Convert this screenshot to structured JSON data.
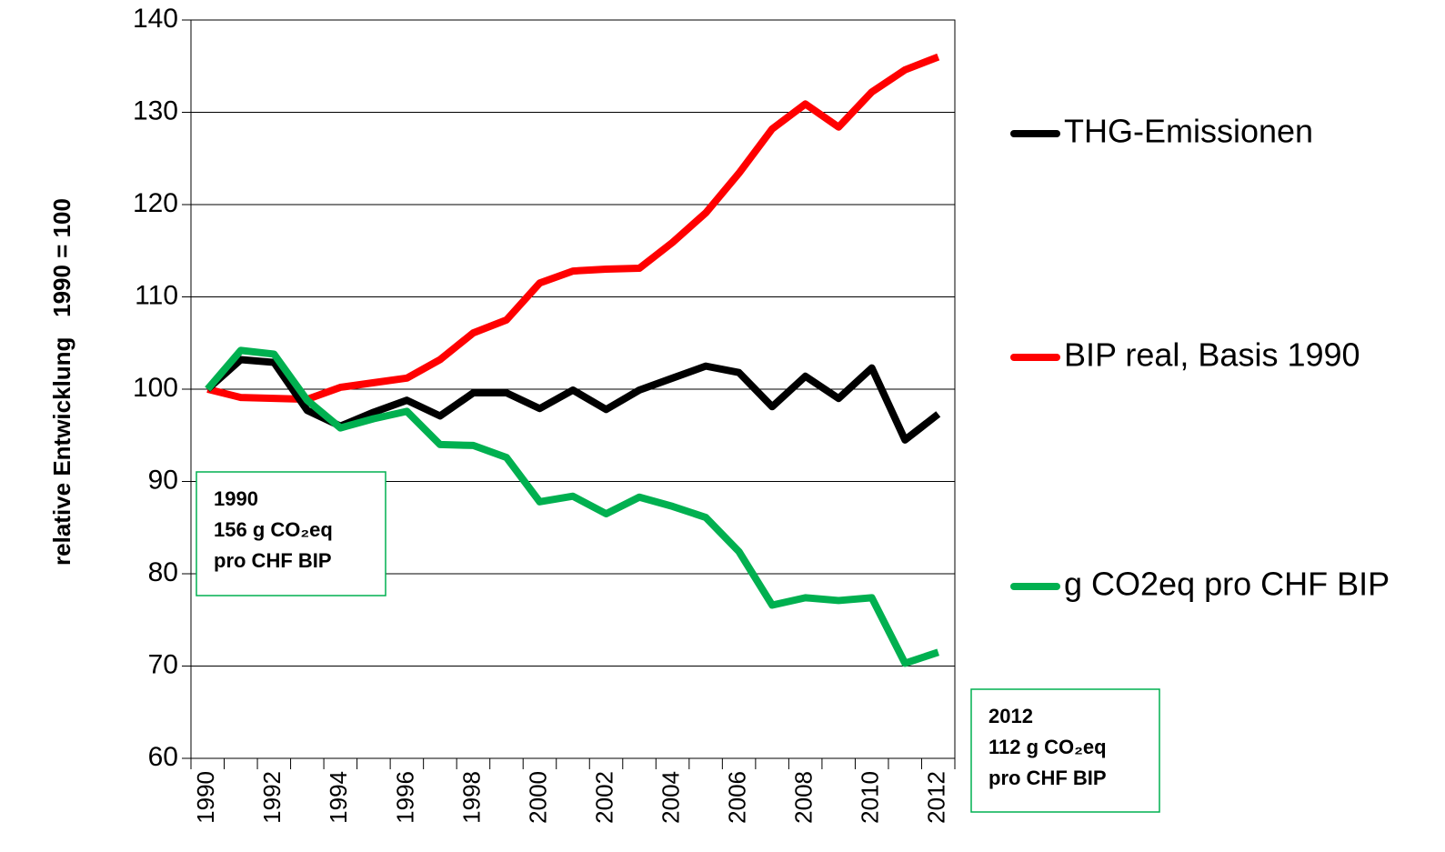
{
  "chart_data": {
    "type": "line",
    "y_label": "relative Entwicklung   1990 = 100",
    "categories": [
      "1990",
      null,
      "1992",
      null,
      "1994",
      null,
      "1996",
      null,
      "1998",
      null,
      "2000",
      null,
      "2002",
      null,
      "2004",
      null,
      "2006",
      null,
      "2008",
      null,
      "2010",
      null,
      "2012"
    ],
    "series": [
      {
        "name": "THG-Emissionen",
        "color": "#000000",
        "values": [
          100,
          103.2,
          102.9,
          97.7,
          96,
          97.5,
          98.8,
          97.1,
          99.6,
          99.6,
          97.9,
          99.9,
          97.8,
          99.9,
          101.2,
          102.5,
          101.8,
          98.1,
          101.4,
          99,
          102.3,
          94.5,
          97.3
        ]
      },
      {
        "name": "BIP real, Basis 1990",
        "color": "#ff0000",
        "values": [
          100,
          99.1,
          99.0,
          98.9,
          100.2,
          100.7,
          101.2,
          103.2,
          106.1,
          107.5,
          111.5,
          112.8,
          113.0,
          113.1,
          115.9,
          119.1,
          123.4,
          128.2,
          130.9,
          128.4,
          132.2,
          134.6,
          136.0
        ]
      },
      {
        "name": "g CO2eq pro CHF BIP",
        "color": "#00b050",
        "values": [
          100,
          104.2,
          103.8,
          98.8,
          95.8,
          96.8,
          97.6,
          94,
          93.9,
          92.6,
          87.8,
          88.4,
          86.5,
          88.3,
          87.3,
          86.1,
          82.4,
          76.6,
          77.4,
          77.1,
          77.4,
          70.3,
          71.5
        ]
      }
    ],
    "ylim": [
      60,
      140
    ],
    "yticks": [
      60,
      70,
      80,
      90,
      100,
      110,
      120,
      130,
      140
    ],
    "grid": true,
    "legend": "right",
    "annotations": [
      {
        "lines": [
          "1990",
          "156 g CO₂eq",
          "pro CHF BIP"
        ],
        "color": "#00b050"
      },
      {
        "lines": [
          "2012",
          "112 g CO₂eq",
          "pro CHF BIP"
        ],
        "color": "#00b050"
      }
    ]
  }
}
